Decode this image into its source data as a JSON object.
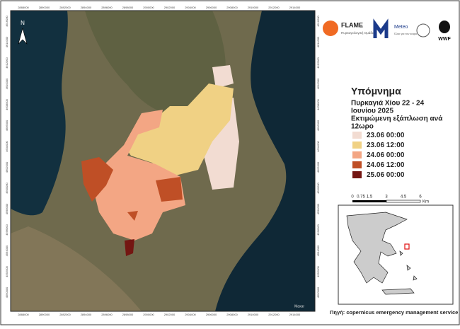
{
  "logos": {
    "flame": "FLAME",
    "flame_subtitle": "Πυρκαγιολογική Ομάδα",
    "meteo": "Meteo",
    "meteo_subtitle": "Όλοι για τον καιρό",
    "wwf": "WWF"
  },
  "north": "N",
  "legend": {
    "title": "Υπόμνημα",
    "subtitle_1": "Πυρκαγιά Χίου 22 - 24",
    "subtitle_2": "Ιουνίου 2025",
    "note_1": "Εκτιμώμενη εξάπλωση ανά",
    "note_2": "12ωρο",
    "items": [
      {
        "label": "23.06 00:00",
        "color": "#f2dcd2"
      },
      {
        "label": "23.06 12:00",
        "color": "#f0d184"
      },
      {
        "label": "24.06 00:00",
        "color": "#f3a684"
      },
      {
        "label": "24.06 12:00",
        "color": "#bf4f26"
      },
      {
        "label": "25.06 00:00",
        "color": "#741612"
      }
    ]
  },
  "scale_bar": {
    "labels": [
      "0",
      "0.75",
      "1.5",
      "3",
      "4.5",
      "6"
    ],
    "unit": "Km"
  },
  "coordinates": {
    "x": [
      "2888000",
      "2890000",
      "2892000",
      "2894000",
      "2896000",
      "2898000",
      "2900000",
      "2902000",
      "2904000",
      "2906000",
      "2908000",
      "2910000",
      "2912000",
      "2914000"
    ],
    "y": [
      "4616000",
      "4614000",
      "4612000",
      "4610000",
      "4608000",
      "4606000",
      "4604000",
      "4602000",
      "4600000",
      "4598000",
      "4596000",
      "4594000",
      "4592000",
      "4590000"
    ]
  },
  "credit": "Maxar",
  "source": "Πηγή: copernicus emergency management service"
}
